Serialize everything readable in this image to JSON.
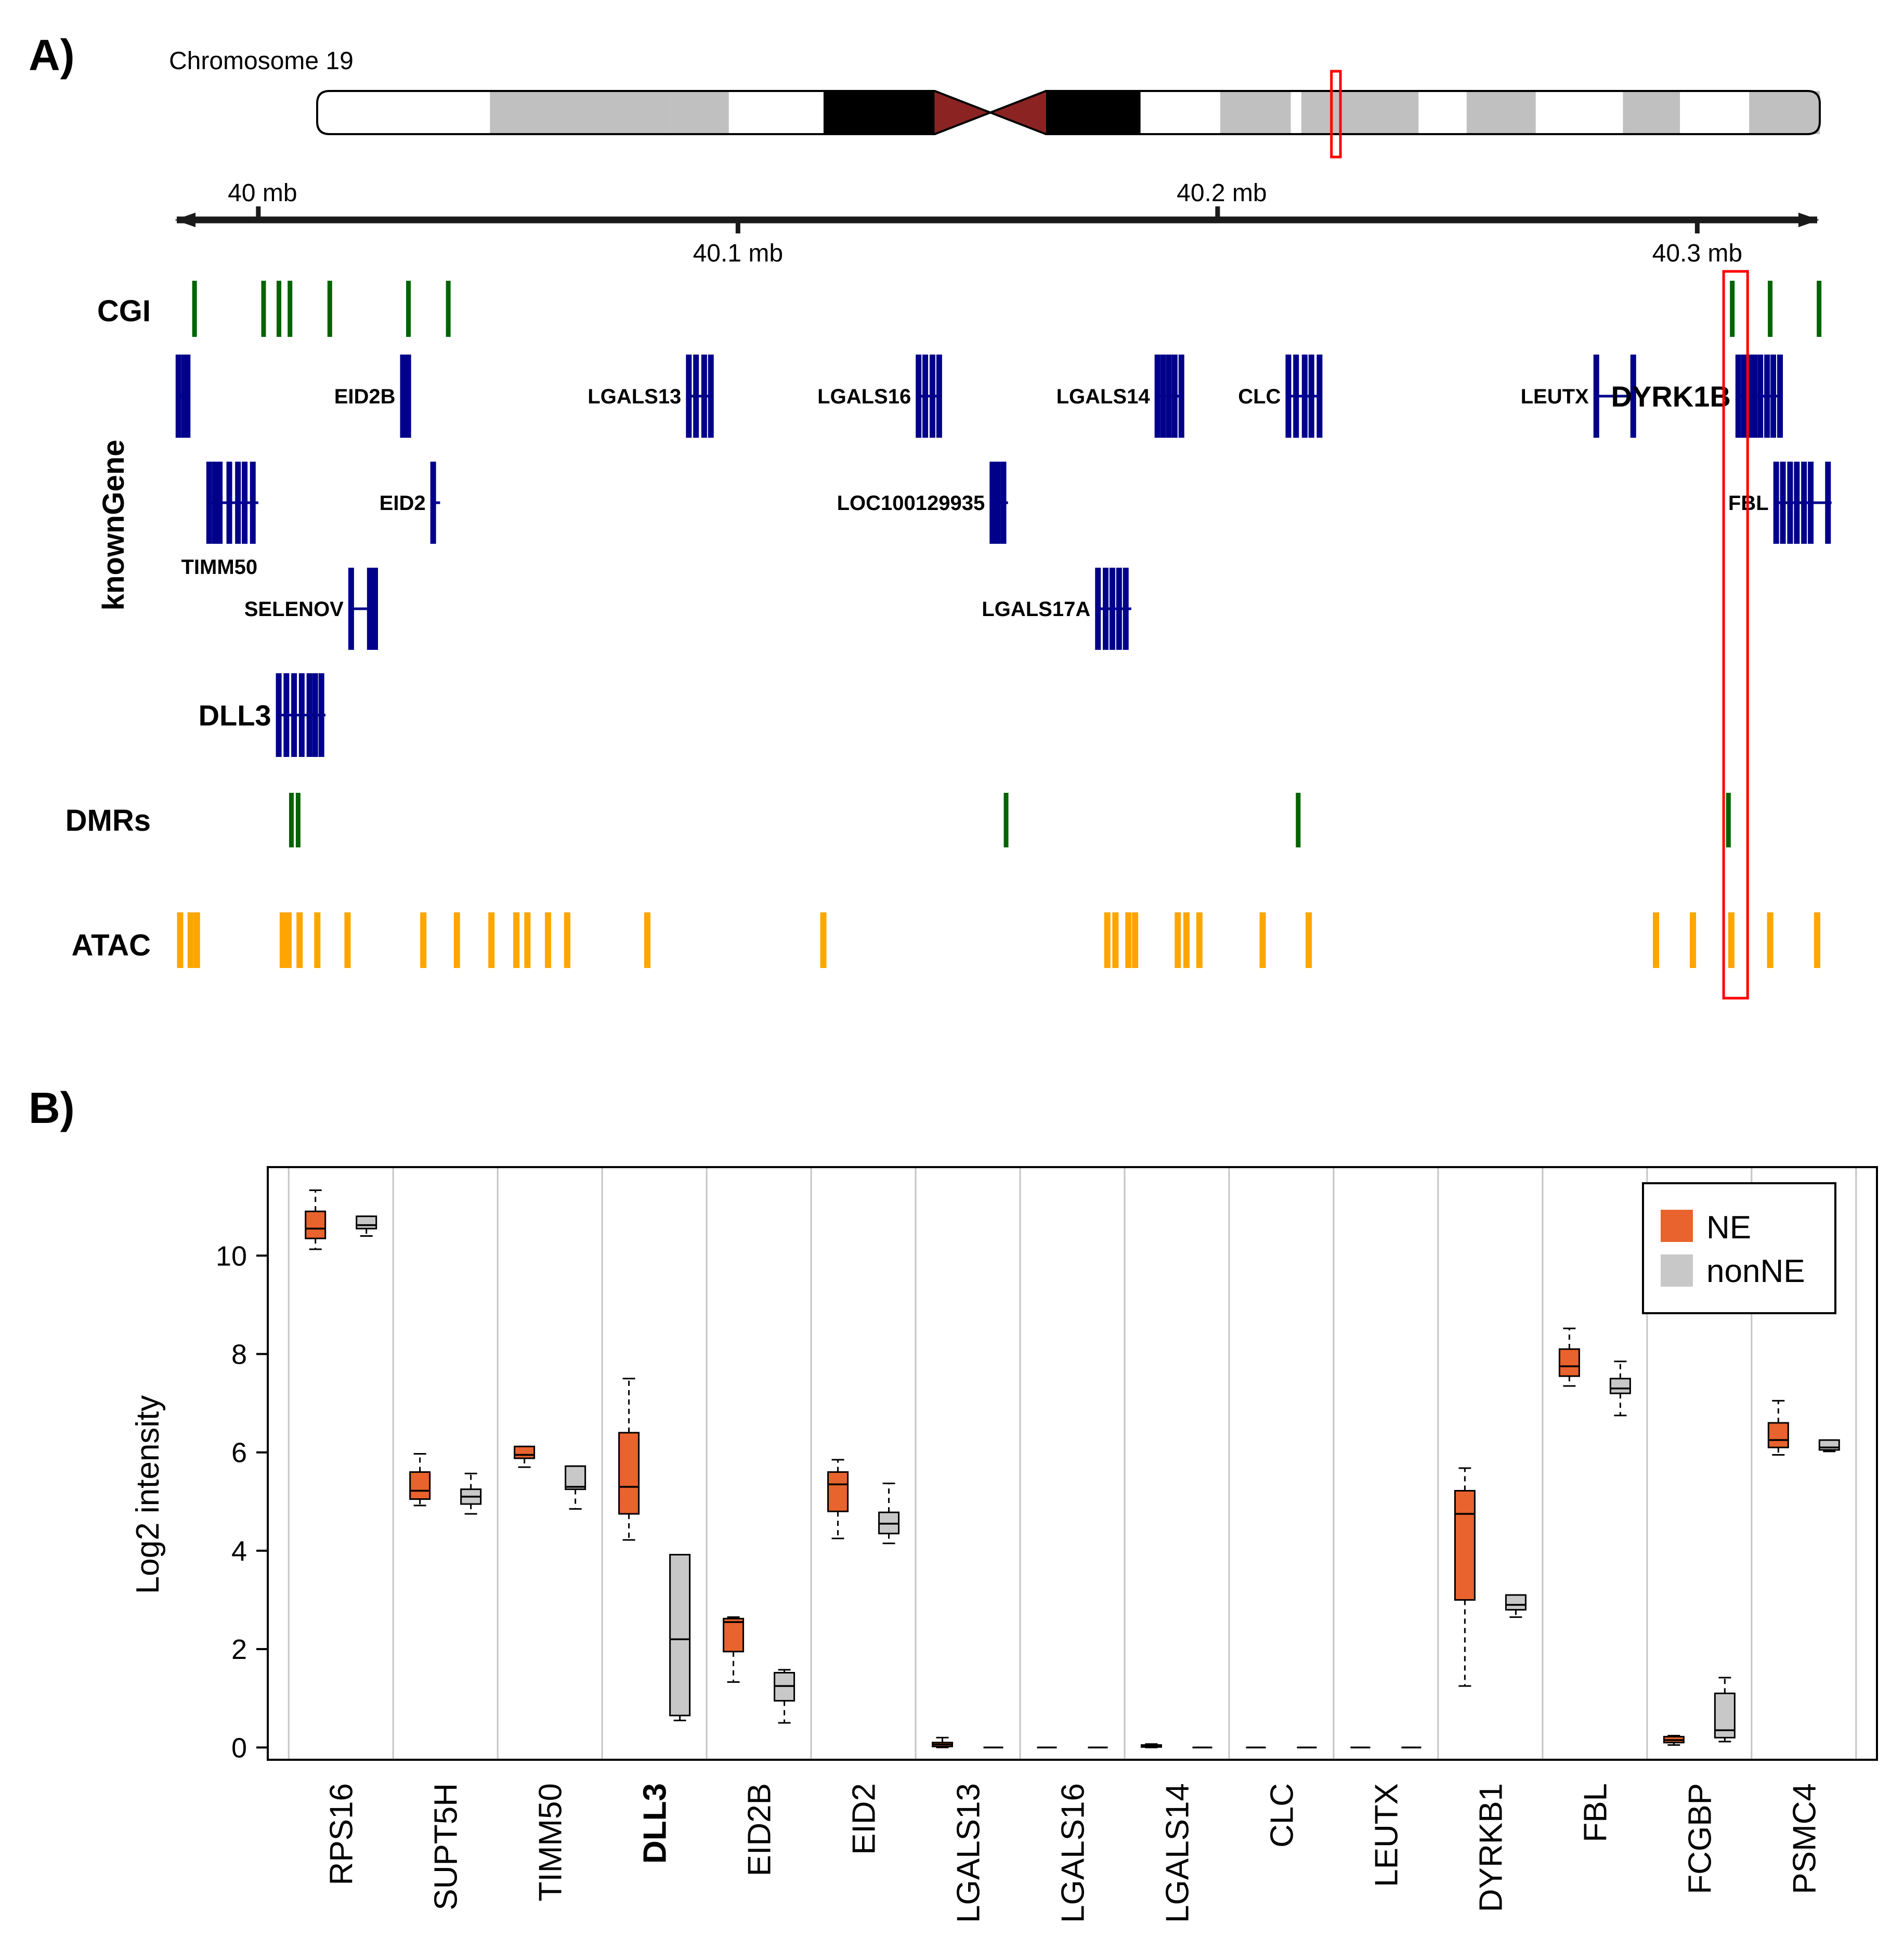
{
  "panel_a": {
    "label": "A)",
    "ideogram": {
      "title": "Chromosome 19",
      "bands": [
        {
          "start": 0.0,
          "end": 0.115,
          "color": "#ffffff"
        },
        {
          "start": 0.115,
          "end": 0.235,
          "color": "#c0c0c0"
        },
        {
          "start": 0.235,
          "end": 0.274,
          "color": "#c0c0c0"
        },
        {
          "start": 0.274,
          "end": 0.337,
          "color": "#ffffff"
        },
        {
          "start": 0.337,
          "end": 0.411,
          "color": "#000000"
        },
        {
          "start": 0.411,
          "end": 0.448,
          "color": "#8b2323",
          "shape": "centromere-left"
        },
        {
          "start": 0.448,
          "end": 0.485,
          "color": "#8b2323",
          "shape": "centromere-right"
        },
        {
          "start": 0.485,
          "end": 0.548,
          "color": "#000000"
        },
        {
          "start": 0.548,
          "end": 0.601,
          "color": "#ffffff"
        },
        {
          "start": 0.601,
          "end": 0.648,
          "color": "#c0c0c0"
        },
        {
          "start": 0.648,
          "end": 0.655,
          "color": "#ffffff"
        },
        {
          "start": 0.655,
          "end": 0.733,
          "color": "#c0c0c0"
        },
        {
          "start": 0.733,
          "end": 0.765,
          "color": "#ffffff"
        },
        {
          "start": 0.765,
          "end": 0.811,
          "color": "#c0c0c0"
        },
        {
          "start": 0.811,
          "end": 0.869,
          "color": "#ffffff"
        },
        {
          "start": 0.869,
          "end": 0.907,
          "color": "#c0c0c0"
        },
        {
          "start": 0.907,
          "end": 0.953,
          "color": "#ffffff"
        },
        {
          "start": 0.953,
          "end": 1.0,
          "color": "#c0c0c0"
        }
      ],
      "highlight": {
        "start": 0.675,
        "end": 0.681,
        "color": "#ff0000"
      }
    },
    "genome_axis": {
      "range_mb": [
        39.983,
        40.325
      ],
      "ticks": [
        {
          "mb": 40.0,
          "label": "40 mb",
          "side": "above"
        },
        {
          "mb": 40.1,
          "label": "40.1 mb",
          "side": "below"
        },
        {
          "mb": 40.2,
          "label": "40.2 mb",
          "side": "above"
        },
        {
          "mb": 40.3,
          "label": "40.3 mb",
          "side": "below"
        }
      ]
    },
    "highlight_region_mb": [
      40.3055,
      40.3105
    ],
    "tracks": {
      "cgi": {
        "label": "CGI",
        "color": "#006400",
        "features_mb": [
          39.9867,
          40.0011,
          40.0043,
          40.0066,
          40.0149,
          40.0313,
          40.0396,
          40.3073,
          40.3152,
          40.3254
        ]
      },
      "known_gene": {
        "label": "knownGene",
        "color": "#00008b",
        "genes": [
          {
            "name": "",
            "row": 0,
            "start_mb": 39.9833,
            "end_mb": 39.9858,
            "exons_mb": [
              39.9833,
              39.9845,
              39.9852
            ]
          },
          {
            "name": "EID2B",
            "row": 0,
            "start_mb": 40.0301,
            "end_mb": 40.0318,
            "exons_mb": [
              40.0301,
              40.0312
            ]
          },
          {
            "name": "LGALS13",
            "row": 0,
            "start_mb": 40.0897,
            "end_mb": 40.0948,
            "exons_mb": [
              40.0897,
              40.0912,
              40.0929,
              40.0943
            ]
          },
          {
            "name": "LGALS16",
            "row": 0,
            "start_mb": 40.1376,
            "end_mb": 40.1424,
            "exons_mb": [
              40.1376,
              40.139,
              40.1405,
              40.1419
            ]
          },
          {
            "name": "LGALS14",
            "row": 0,
            "start_mb": 40.1874,
            "end_mb": 40.193,
            "exons_mb": [
              40.1874,
              40.1886,
              40.1898,
              40.191,
              40.1924
            ]
          },
          {
            "name": "CLC",
            "row": 0,
            "start_mb": 40.2147,
            "end_mb": 40.2218,
            "exons_mb": [
              40.2147,
              40.2163,
              40.2181,
              40.2195,
              40.2212
            ]
          },
          {
            "name": "LEUTX",
            "row": 0,
            "start_mb": 40.2789,
            "end_mb": 40.2872,
            "exons_mb": [
              40.2789,
              40.2866
            ]
          },
          {
            "name": "DYRK1B",
            "row": 0,
            "start_mb": 40.3085,
            "end_mb": 40.3178,
            "exons_mb": [
              40.3085,
              40.3097,
              40.3109,
              40.3119,
              40.3131,
              40.3145,
              40.3158,
              40.3172
            ],
            "big": true
          },
          {
            "name": "TIMM50",
            "row": 1,
            "start_mb": 39.9897,
            "end_mb": 40.0,
            "exons_mb": [
              39.9897,
              39.9909,
              39.9919,
              39.9939,
              39.9957,
              39.9971,
              39.9988
            ],
            "label_below": true
          },
          {
            "name": "EID2",
            "row": 1,
            "start_mb": 40.0364,
            "end_mb": 40.0379,
            "exons_mb": [
              40.0364
            ]
          },
          {
            "name": "LOC100129935",
            "row": 1,
            "start_mb": 40.153,
            "end_mb": 40.1563,
            "exons_mb": [
              40.153,
              40.1541,
              40.1553
            ]
          },
          {
            "name": "FBL",
            "row": 1,
            "start_mb": 40.3164,
            "end_mb": 40.328,
            "exons_mb": [
              40.3164,
              40.3178,
              40.3193,
              40.3207,
              40.3222,
              40.3236,
              40.3272
            ]
          },
          {
            "name": "SELENOV",
            "row": 2,
            "start_mb": 40.0193,
            "end_mb": 40.0249,
            "exons_mb": [
              40.0193,
              40.0232,
              40.0243
            ]
          },
          {
            "name": "LGALS17A",
            "row": 2,
            "start_mb": 40.175,
            "end_mb": 40.182,
            "exons_mb": [
              40.175,
              40.1766,
              40.178,
              40.1794,
              40.1808
            ]
          },
          {
            "name": "DLL3",
            "row": 3,
            "start_mb": 40.0042,
            "end_mb": 40.014,
            "exons_mb": [
              40.0042,
              40.0058,
              40.0074,
              40.009,
              40.0106,
              40.0118,
              40.0131
            ],
            "big": true
          }
        ]
      },
      "dmrs": {
        "label": "DMRs",
        "color": "#006400",
        "features_mb": [
          40.0069,
          40.0083,
          40.1559,
          40.2168,
          40.3065
        ]
      },
      "atac": {
        "label": "ATAC",
        "color": "#ffa500",
        "features_mb": [
          39.9837,
          39.9859,
          39.9872,
          40.0051,
          40.0063,
          40.0086,
          40.0123,
          40.0186,
          40.0344,
          40.0414,
          40.0486,
          40.0538,
          40.0561,
          40.0604,
          40.0644,
          40.0811,
          40.1178,
          40.177,
          40.1787,
          40.1814,
          40.1828,
          40.1917,
          40.1935,
          40.1962,
          40.2094,
          40.219,
          40.2914,
          40.2991,
          40.3071,
          40.3152,
          40.325
        ]
      }
    }
  },
  "panel_b": {
    "label": "B)",
    "legend": [
      {
        "name": "NE",
        "color": "#e8632d"
      },
      {
        "name": "nonNE",
        "color": "#c8c8c8"
      }
    ]
  },
  "chart_data": {
    "type": "boxplot",
    "ylabel": "Log2 intensity",
    "ylim": [
      -0.25,
      11.8
    ],
    "yticks": [
      0,
      2,
      4,
      6,
      8,
      10
    ],
    "grid": "vertical",
    "legend_position": "top-right",
    "categories": [
      "RPS16",
      "SUPT5H",
      "TIMM50",
      "DLL3",
      "EID2B",
      "EID2",
      "LGALS13",
      "LGALS16",
      "LGALS14",
      "CLC",
      "LEUTX",
      "DYRKB1",
      "FBL",
      "FCGBP",
      "PSMC4"
    ],
    "bold_categories": [
      "DLL3"
    ],
    "series": [
      {
        "name": "NE",
        "color": "#e8632d",
        "boxes": [
          {
            "min": 10.13,
            "q1": 10.35,
            "median": 10.55,
            "q3": 10.9,
            "max": 11.33
          },
          {
            "min": 4.92,
            "q1": 5.05,
            "median": 5.22,
            "q3": 5.6,
            "max": 5.97
          },
          {
            "min": 5.7,
            "q1": 5.88,
            "median": 5.95,
            "q3": 6.12,
            "max": 6.12
          },
          {
            "min": 4.22,
            "q1": 4.75,
            "median": 5.3,
            "q3": 6.4,
            "max": 7.5
          },
          {
            "min": 1.33,
            "q1": 1.95,
            "median": 2.55,
            "q3": 2.62,
            "max": 2.65
          },
          {
            "min": 4.25,
            "q1": 4.8,
            "median": 5.35,
            "q3": 5.6,
            "max": 5.85
          },
          {
            "min": 0.0,
            "q1": 0.02,
            "median": 0.06,
            "q3": 0.1,
            "max": 0.2
          },
          {
            "min": 0.0,
            "q1": 0.0,
            "median": 0.0,
            "q3": 0.0,
            "max": 0.0
          },
          {
            "min": 0.0,
            "q1": 0.01,
            "median": 0.03,
            "q3": 0.05,
            "max": 0.07
          },
          {
            "min": 0.0,
            "q1": 0.0,
            "median": 0.0,
            "q3": 0.0,
            "max": 0.0
          },
          {
            "min": 0.0,
            "q1": 0.0,
            "median": 0.0,
            "q3": 0.0,
            "max": 0.0
          },
          {
            "min": 1.25,
            "q1": 3.0,
            "median": 4.75,
            "q3": 5.22,
            "max": 5.68
          },
          {
            "min": 7.35,
            "q1": 7.55,
            "median": 7.75,
            "q3": 8.1,
            "max": 8.52
          },
          {
            "min": 0.05,
            "q1": 0.1,
            "median": 0.15,
            "q3": 0.22,
            "max": 0.24
          },
          {
            "min": 5.95,
            "q1": 6.1,
            "median": 6.25,
            "q3": 6.6,
            "max": 7.05
          }
        ]
      },
      {
        "name": "nonNE",
        "color": "#c8c8c8",
        "boxes": [
          {
            "min": 10.4,
            "q1": 10.55,
            "median": 10.62,
            "q3": 10.8,
            "max": 10.8
          },
          {
            "min": 4.75,
            "q1": 4.95,
            "median": 5.1,
            "q3": 5.25,
            "max": 5.57
          },
          {
            "min": 4.85,
            "q1": 5.25,
            "median": 5.3,
            "q3": 5.72,
            "max": 5.72
          },
          {
            "min": 0.55,
            "q1": 0.65,
            "median": 2.2,
            "q3": 3.92,
            "max": 3.92
          },
          {
            "min": 0.5,
            "q1": 0.95,
            "median": 1.25,
            "q3": 1.52,
            "max": 1.58
          },
          {
            "min": 4.15,
            "q1": 4.35,
            "median": 4.55,
            "q3": 4.78,
            "max": 5.37
          },
          {
            "min": 0.0,
            "q1": 0.0,
            "median": 0.0,
            "q3": 0.0,
            "max": 0.0
          },
          {
            "min": 0.0,
            "q1": 0.0,
            "median": 0.0,
            "q3": 0.0,
            "max": 0.0
          },
          {
            "min": 0.0,
            "q1": 0.0,
            "median": 0.0,
            "q3": 0.0,
            "max": 0.0
          },
          {
            "min": 0.0,
            "q1": 0.0,
            "median": 0.0,
            "q3": 0.0,
            "max": 0.0
          },
          {
            "min": 0.0,
            "q1": 0.0,
            "median": 0.0,
            "q3": 0.0,
            "max": 0.0
          },
          {
            "min": 2.65,
            "q1": 2.8,
            "median": 2.9,
            "q3": 3.1,
            "max": 3.1
          },
          {
            "min": 6.75,
            "q1": 7.2,
            "median": 7.3,
            "q3": 7.5,
            "max": 7.85
          },
          {
            "min": 0.12,
            "q1": 0.2,
            "median": 0.35,
            "q3": 1.1,
            "max": 1.42
          },
          {
            "min": 6.02,
            "q1": 6.05,
            "median": 6.1,
            "q3": 6.25,
            "max": 6.25
          }
        ]
      }
    ]
  }
}
